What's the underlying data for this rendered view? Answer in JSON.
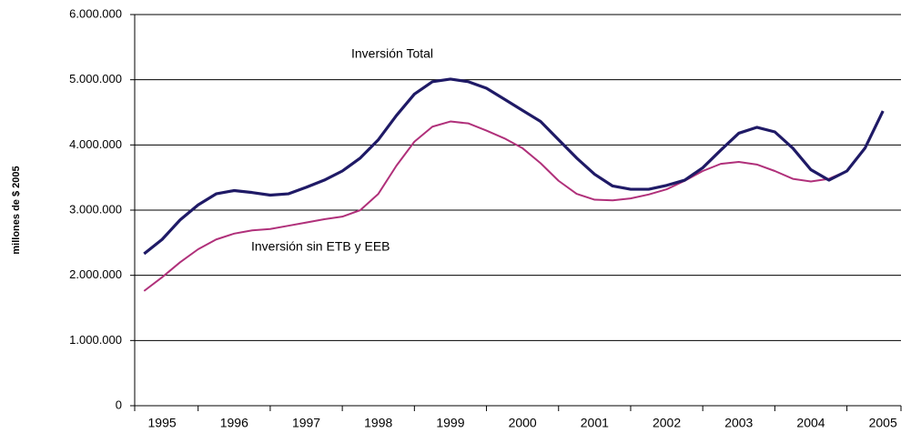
{
  "chart_data": {
    "type": "line",
    "y_label": "millones de $ 2005",
    "annotations": [
      "Inversión Total",
      "Inversión sin ETB y EEB"
    ],
    "x": [
      1994.75,
      1995.0,
      1995.25,
      1995.5,
      1995.75,
      1996.0,
      1996.25,
      1996.5,
      1996.75,
      1997.0,
      1997.25,
      1997.5,
      1997.75,
      1998.0,
      1998.25,
      1998.5,
      1998.75,
      1999.0,
      1999.25,
      1999.5,
      1999.75,
      2000.0,
      2000.25,
      2000.5,
      2000.75,
      2001.0,
      2001.25,
      2001.5,
      2001.75,
      2002.0,
      2002.25,
      2002.5,
      2002.75,
      2003.0,
      2003.25,
      2003.5,
      2003.75,
      2004.0,
      2004.25,
      2004.5,
      2004.75,
      2005.0
    ],
    "series": [
      {
        "name": "Inversión Total",
        "color": "#1f1a66",
        "values": [
          2330000,
          2550000,
          2850000,
          3080000,
          3250000,
          3300000,
          3270000,
          3230000,
          3250000,
          3350000,
          3460000,
          3600000,
          3800000,
          4080000,
          4450000,
          4780000,
          4970000,
          5010000,
          4970000,
          4870000,
          4700000,
          4530000,
          4360000,
          4080000,
          3800000,
          3550000,
          3370000,
          3320000,
          3320000,
          3380000,
          3460000,
          3650000,
          3920000,
          4180000,
          4270000,
          4200000,
          3950000,
          3620000,
          3460000,
          3600000,
          3950000,
          4520000
        ]
      },
      {
        "name": "Inversión sin ETB y EEB",
        "color": "#b0307a",
        "values": [
          1760000,
          1970000,
          2200000,
          2400000,
          2550000,
          2640000,
          2690000,
          2710000,
          2760000,
          2810000,
          2860000,
          2900000,
          3000000,
          3250000,
          3680000,
          4050000,
          4280000,
          4360000,
          4330000,
          4220000,
          4100000,
          3950000,
          3720000,
          3450000,
          3250000,
          3160000,
          3150000,
          3180000,
          3240000,
          3320000,
          3450000,
          3600000,
          3710000,
          3740000,
          3700000,
          3600000,
          3480000,
          3440000,
          3480000,
          3600000,
          3950000,
          4520000
        ]
      }
    ],
    "xlim": [
      1994.62,
      2005.25
    ],
    "xticks": [
      1995,
      1996,
      1997,
      1998,
      1999,
      2000,
      2001,
      2002,
      2003,
      2004,
      2005
    ],
    "ylim": [
      0,
      6000000
    ],
    "yticks": [
      0,
      {
        "value": 1000000,
        "label": "1.000.000"
      },
      {
        "value": 2000000,
        "label": "2.000.000"
      },
      {
        "value": 3000000,
        "label": "3.000.000"
      },
      {
        "value": 4000000,
        "label": "4.000.000"
      },
      {
        "value": 5000000,
        "label": "5.000.000"
      },
      {
        "value": 6000000,
        "label": "6.000.000"
      }
    ],
    "grid": true
  }
}
